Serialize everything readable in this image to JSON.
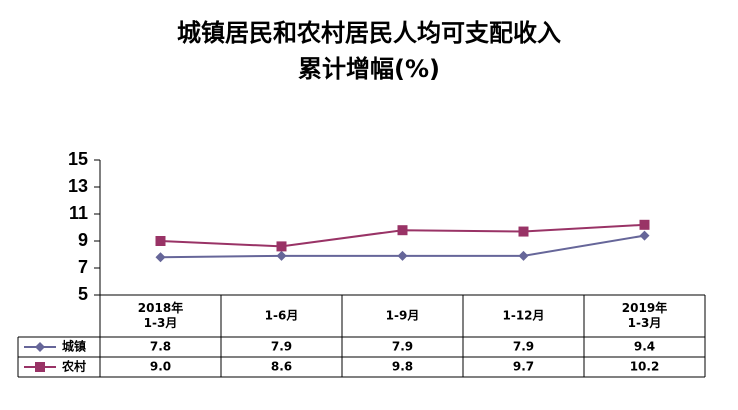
{
  "chart_data": {
    "type": "line",
    "title_lines": [
      "城镇居民和农村居民人均可支配收入",
      "累计增幅(%)"
    ],
    "categories": [
      [
        "2018年",
        "1-3月"
      ],
      [
        "1-6月"
      ],
      [
        "1-9月"
      ],
      [
        "1-12月"
      ],
      [
        "2019年",
        "1-3月"
      ]
    ],
    "series": [
      {
        "name": "城镇",
        "color": "#666699",
        "marker": "diamond",
        "values": [
          7.8,
          7.9,
          7.9,
          7.9,
          9.4
        ],
        "value_labels": [
          "7.8",
          "7.9",
          "7.9",
          "7.9",
          "9.4"
        ]
      },
      {
        "name": "农村",
        "color": "#993366",
        "marker": "square",
        "values": [
          9.0,
          8.6,
          9.8,
          9.7,
          10.2
        ],
        "value_labels": [
          "9.0",
          "8.6",
          "9.8",
          "9.7",
          "10.2"
        ]
      }
    ],
    "ylim": [
      5,
      15
    ],
    "yticks": [
      5,
      7,
      9,
      11,
      13,
      15
    ],
    "grid": false
  }
}
